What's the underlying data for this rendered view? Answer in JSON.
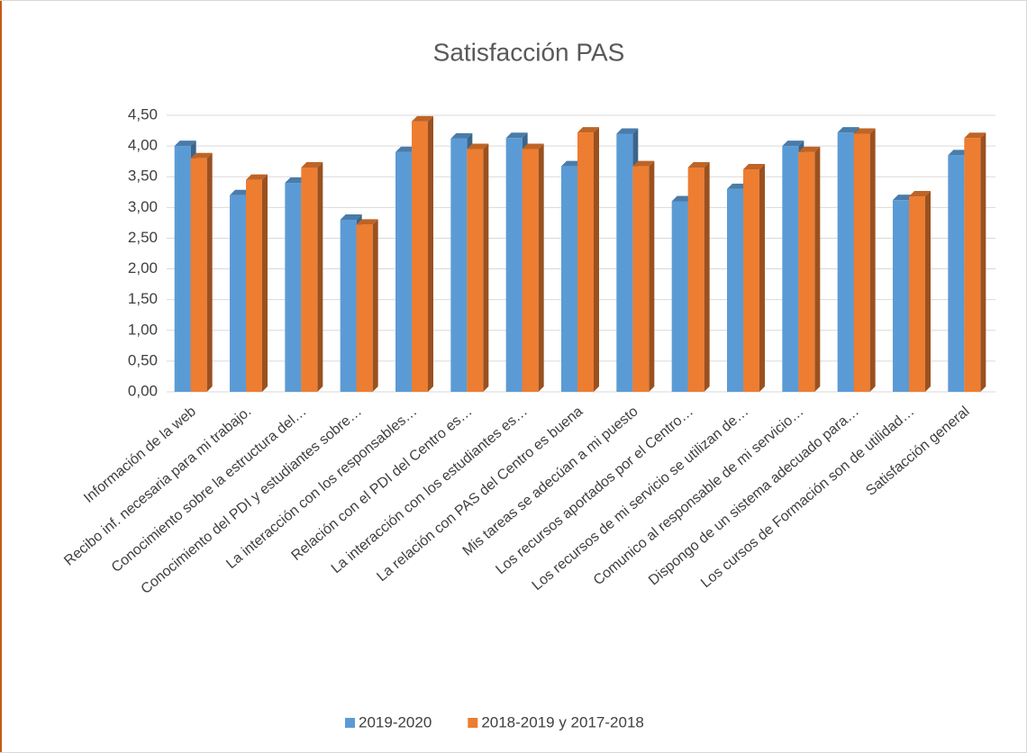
{
  "chart_data": {
    "type": "bar",
    "title": "Satisfacción PAS",
    "categories": [
      "Información de la web",
      "Recibo inf. necesaria para mi trabajo.",
      "Conocimiento sobre la estructura del…",
      "Conocimiento del PDI y estudiantes sobre…",
      "La interacción con los responsables…",
      "Relación con el PDI del Centro es…",
      "La interacción con los estudiantes  es…",
      "La relación con PAS del Centro es buena",
      "Mis tareas se adecúan a  mi puesto",
      "Los recursos aportados por el Centro…",
      "Los recursos de mi servicio se utilizan de…",
      "Comunico al responsable de mi servicio…",
      "Dispongo de un sistema adecuado para…",
      "Los cursos de Formación  son de utilidad…",
      "Satisfacción general"
    ],
    "series": [
      {
        "name": "2019-2020",
        "color": "#5b9bd5",
        "values": [
          4.0,
          3.2,
          3.4,
          2.8,
          3.9,
          4.12,
          4.13,
          3.67,
          4.2,
          3.1,
          3.3,
          4.0,
          4.22,
          3.12,
          3.85
        ]
      },
      {
        "name": "2018-2019 y 2017-2018",
        "color": "#ed7d31",
        "values": [
          3.8,
          3.45,
          3.65,
          2.72,
          4.4,
          3.95,
          3.95,
          4.22,
          3.67,
          3.65,
          3.62,
          3.9,
          4.2,
          3.18,
          4.13
        ]
      }
    ],
    "ylim": [
      0,
      4.5
    ],
    "yticks": [
      {
        "value": 0,
        "label": "0,00"
      },
      {
        "value": 0.5,
        "label": "0,50"
      },
      {
        "value": 1,
        "label": "1,00"
      },
      {
        "value": 1.5,
        "label": "1,50"
      },
      {
        "value": 2,
        "label": "2,00"
      },
      {
        "value": 2.5,
        "label": "2,50"
      },
      {
        "value": 3,
        "label": "3,00"
      },
      {
        "value": 3.5,
        "label": "3,50"
      },
      {
        "value": 4,
        "label": "4,00"
      },
      {
        "value": 4.5,
        "label": "4,50"
      }
    ],
    "grid": true,
    "legend": "bottom"
  }
}
